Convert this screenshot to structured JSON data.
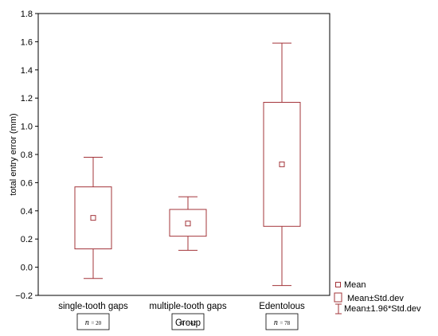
{
  "chart_data": {
    "type": "box",
    "title": "",
    "xlabel": "Group",
    "ylabel": "total entry error (mm)",
    "ylim": [
      -0.2,
      1.8
    ],
    "yticks": [
      "−0.2",
      "0.0",
      "0.2",
      "0.4",
      "0.6",
      "0.8",
      "1.0",
      "1.2",
      "1.4",
      "1.6",
      "1.8"
    ],
    "ytick_values": [
      -0.2,
      0.0,
      0.2,
      0.4,
      0.6,
      0.8,
      1.0,
      1.2,
      1.4,
      1.6,
      1.8
    ],
    "grid": false,
    "categories": [
      "single-tooth gaps",
      "multiple-tooth gaps",
      "Edentolous"
    ],
    "groups": [
      {
        "name": "single-tooth gaps",
        "n": "20",
        "mean": 0.35,
        "box_low": 0.13,
        "box_high": 0.57,
        "whisker_low": -0.08,
        "whisker_high": 0.78
      },
      {
        "name": "multiple-tooth gaps",
        "n": "42",
        "mean": 0.31,
        "box_low": 0.22,
        "box_high": 0.41,
        "whisker_low": 0.12,
        "whisker_high": 0.5
      },
      {
        "name": "Edentolous",
        "n": "78",
        "mean": 0.73,
        "box_low": 0.29,
        "box_high": 1.17,
        "whisker_low": -0.13,
        "whisker_high": 1.59
      }
    ],
    "n_prefix": "n",
    "n_separator": "=",
    "legend": {
      "placement": "bottom-right",
      "entries": [
        "Mean",
        "Mean±Std.dev",
        "Mean±1.96*Std.dev"
      ]
    },
    "colors": {
      "marks": "#a3343a",
      "axis": "#000000",
      "background": "#ffffff"
    }
  }
}
